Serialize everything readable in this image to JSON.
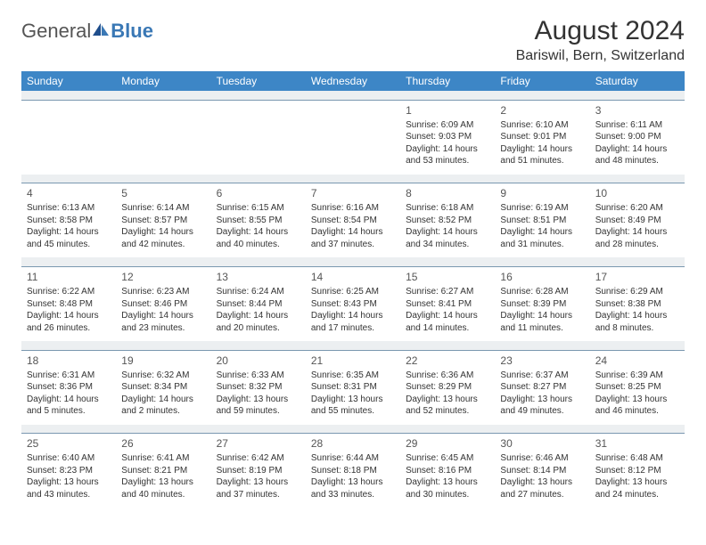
{
  "logo": {
    "text1": "General",
    "text2": "Blue"
  },
  "title": "August 2024",
  "location": "Bariswil, Bern, Switzerland",
  "colors": {
    "header_bg": "#3d86c6",
    "header_text": "#ffffff",
    "spacer_bg": "#eceff1",
    "border": "#7a98b0",
    "text": "#333333",
    "logo_gray": "#555555",
    "logo_blue": "#3a78b5"
  },
  "day_headers": [
    "Sunday",
    "Monday",
    "Tuesday",
    "Wednesday",
    "Thursday",
    "Friday",
    "Saturday"
  ],
  "weeks": [
    [
      null,
      null,
      null,
      null,
      {
        "day": "1",
        "sunrise": "Sunrise: 6:09 AM",
        "sunset": "Sunset: 9:03 PM",
        "daylight": "Daylight: 14 hours and 53 minutes."
      },
      {
        "day": "2",
        "sunrise": "Sunrise: 6:10 AM",
        "sunset": "Sunset: 9:01 PM",
        "daylight": "Daylight: 14 hours and 51 minutes."
      },
      {
        "day": "3",
        "sunrise": "Sunrise: 6:11 AM",
        "sunset": "Sunset: 9:00 PM",
        "daylight": "Daylight: 14 hours and 48 minutes."
      }
    ],
    [
      {
        "day": "4",
        "sunrise": "Sunrise: 6:13 AM",
        "sunset": "Sunset: 8:58 PM",
        "daylight": "Daylight: 14 hours and 45 minutes."
      },
      {
        "day": "5",
        "sunrise": "Sunrise: 6:14 AM",
        "sunset": "Sunset: 8:57 PM",
        "daylight": "Daylight: 14 hours and 42 minutes."
      },
      {
        "day": "6",
        "sunrise": "Sunrise: 6:15 AM",
        "sunset": "Sunset: 8:55 PM",
        "daylight": "Daylight: 14 hours and 40 minutes."
      },
      {
        "day": "7",
        "sunrise": "Sunrise: 6:16 AM",
        "sunset": "Sunset: 8:54 PM",
        "daylight": "Daylight: 14 hours and 37 minutes."
      },
      {
        "day": "8",
        "sunrise": "Sunrise: 6:18 AM",
        "sunset": "Sunset: 8:52 PM",
        "daylight": "Daylight: 14 hours and 34 minutes."
      },
      {
        "day": "9",
        "sunrise": "Sunrise: 6:19 AM",
        "sunset": "Sunset: 8:51 PM",
        "daylight": "Daylight: 14 hours and 31 minutes."
      },
      {
        "day": "10",
        "sunrise": "Sunrise: 6:20 AM",
        "sunset": "Sunset: 8:49 PM",
        "daylight": "Daylight: 14 hours and 28 minutes."
      }
    ],
    [
      {
        "day": "11",
        "sunrise": "Sunrise: 6:22 AM",
        "sunset": "Sunset: 8:48 PM",
        "daylight": "Daylight: 14 hours and 26 minutes."
      },
      {
        "day": "12",
        "sunrise": "Sunrise: 6:23 AM",
        "sunset": "Sunset: 8:46 PM",
        "daylight": "Daylight: 14 hours and 23 minutes."
      },
      {
        "day": "13",
        "sunrise": "Sunrise: 6:24 AM",
        "sunset": "Sunset: 8:44 PM",
        "daylight": "Daylight: 14 hours and 20 minutes."
      },
      {
        "day": "14",
        "sunrise": "Sunrise: 6:25 AM",
        "sunset": "Sunset: 8:43 PM",
        "daylight": "Daylight: 14 hours and 17 minutes."
      },
      {
        "day": "15",
        "sunrise": "Sunrise: 6:27 AM",
        "sunset": "Sunset: 8:41 PM",
        "daylight": "Daylight: 14 hours and 14 minutes."
      },
      {
        "day": "16",
        "sunrise": "Sunrise: 6:28 AM",
        "sunset": "Sunset: 8:39 PM",
        "daylight": "Daylight: 14 hours and 11 minutes."
      },
      {
        "day": "17",
        "sunrise": "Sunrise: 6:29 AM",
        "sunset": "Sunset: 8:38 PM",
        "daylight": "Daylight: 14 hours and 8 minutes."
      }
    ],
    [
      {
        "day": "18",
        "sunrise": "Sunrise: 6:31 AM",
        "sunset": "Sunset: 8:36 PM",
        "daylight": "Daylight: 14 hours and 5 minutes."
      },
      {
        "day": "19",
        "sunrise": "Sunrise: 6:32 AM",
        "sunset": "Sunset: 8:34 PM",
        "daylight": "Daylight: 14 hours and 2 minutes."
      },
      {
        "day": "20",
        "sunrise": "Sunrise: 6:33 AM",
        "sunset": "Sunset: 8:32 PM",
        "daylight": "Daylight: 13 hours and 59 minutes."
      },
      {
        "day": "21",
        "sunrise": "Sunrise: 6:35 AM",
        "sunset": "Sunset: 8:31 PM",
        "daylight": "Daylight: 13 hours and 55 minutes."
      },
      {
        "day": "22",
        "sunrise": "Sunrise: 6:36 AM",
        "sunset": "Sunset: 8:29 PM",
        "daylight": "Daylight: 13 hours and 52 minutes."
      },
      {
        "day": "23",
        "sunrise": "Sunrise: 6:37 AM",
        "sunset": "Sunset: 8:27 PM",
        "daylight": "Daylight: 13 hours and 49 minutes."
      },
      {
        "day": "24",
        "sunrise": "Sunrise: 6:39 AM",
        "sunset": "Sunset: 8:25 PM",
        "daylight": "Daylight: 13 hours and 46 minutes."
      }
    ],
    [
      {
        "day": "25",
        "sunrise": "Sunrise: 6:40 AM",
        "sunset": "Sunset: 8:23 PM",
        "daylight": "Daylight: 13 hours and 43 minutes."
      },
      {
        "day": "26",
        "sunrise": "Sunrise: 6:41 AM",
        "sunset": "Sunset: 8:21 PM",
        "daylight": "Daylight: 13 hours and 40 minutes."
      },
      {
        "day": "27",
        "sunrise": "Sunrise: 6:42 AM",
        "sunset": "Sunset: 8:19 PM",
        "daylight": "Daylight: 13 hours and 37 minutes."
      },
      {
        "day": "28",
        "sunrise": "Sunrise: 6:44 AM",
        "sunset": "Sunset: 8:18 PM",
        "daylight": "Daylight: 13 hours and 33 minutes."
      },
      {
        "day": "29",
        "sunrise": "Sunrise: 6:45 AM",
        "sunset": "Sunset: 8:16 PM",
        "daylight": "Daylight: 13 hours and 30 minutes."
      },
      {
        "day": "30",
        "sunrise": "Sunrise: 6:46 AM",
        "sunset": "Sunset: 8:14 PM",
        "daylight": "Daylight: 13 hours and 27 minutes."
      },
      {
        "day": "31",
        "sunrise": "Sunrise: 6:48 AM",
        "sunset": "Sunset: 8:12 PM",
        "daylight": "Daylight: 13 hours and 24 minutes."
      }
    ]
  ]
}
